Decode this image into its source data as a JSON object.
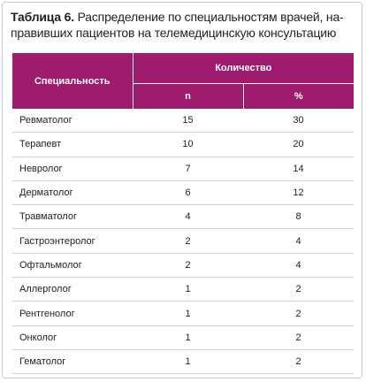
{
  "caption": {
    "label": "Таблица 6.",
    "lines": [
      "Распределение по специальностям врачей, на-",
      "правивших пациентов на телемедицинскую консультацию"
    ]
  },
  "table": {
    "header": {
      "specialty": "Специальность",
      "quantity": "Количество",
      "n": "n",
      "percent": "%"
    },
    "rows": [
      [
        "Ревматолог",
        15,
        30
      ],
      [
        "Терапевт",
        10,
        20
      ],
      [
        "Невролог",
        7,
        14
      ],
      [
        "Дерматолог",
        6,
        12
      ],
      [
        "Травматолог",
        4,
        8
      ],
      [
        "Гастроэнтеролог",
        2,
        4
      ],
      [
        "Офтальмолог",
        2,
        4
      ],
      [
        "Аллерголог",
        1,
        2
      ],
      [
        "Рентгенолог",
        1,
        2
      ],
      [
        "Онколог",
        1,
        2
      ],
      [
        "Гематолог",
        1,
        2
      ]
    ]
  }
}
